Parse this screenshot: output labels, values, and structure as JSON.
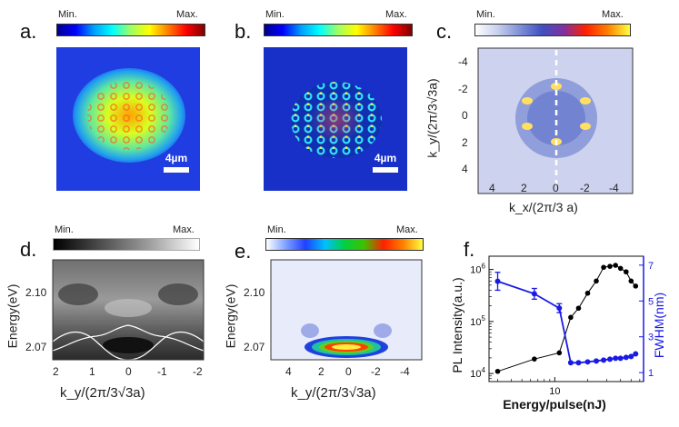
{
  "panels": {
    "a": {
      "letter": "a.",
      "cb_min": "Min.",
      "cb_max": "Max.",
      "scale_bar": "4µm"
    },
    "b": {
      "letter": "b.",
      "cb_min": "Min.",
      "cb_max": "Max.",
      "scale_bar": "4µm"
    },
    "c": {
      "letter": "c.",
      "cb_min": "Min.",
      "cb_max": "Max.",
      "ylabel": "k_y/(2π/3√3a)",
      "xlabel": "k_x/(2π/3 a)",
      "yticks": [
        "-4",
        "-2",
        "0",
        "2",
        "4"
      ],
      "xticks": [
        "4",
        "2",
        "0",
        "-2",
        "-4"
      ]
    },
    "d": {
      "letter": "d.",
      "cb_min": "Min.",
      "cb_max": "Max.",
      "ylabel": "Energy(eV)",
      "xlabel": "k_y/(2π/3√3a)",
      "yticks": [
        "2.10",
        "2.07"
      ],
      "xticks": [
        "2",
        "1",
        "0",
        "-1",
        "-2"
      ]
    },
    "e": {
      "letter": "e.",
      "cb_min": "Min.",
      "cb_max": "Max.",
      "ylabel": "Energy(eV)",
      "xlabel": "k_y/(2π/3√3a)",
      "yticks": [
        "2.10",
        "2.07"
      ],
      "xticks": [
        "4",
        "2",
        "0",
        "-2",
        "-4"
      ]
    },
    "f": {
      "letter": "f."
    }
  },
  "chart_data": {
    "type": "scatter",
    "xlabel": "Energy/pulse(nJ)",
    "ylabel": "PL Intensity(a.u.)",
    "y2label": "FWHM(nm)",
    "xscale": "log",
    "yscale": "log",
    "xticks": [
      "10"
    ],
    "yticks": [
      "10^4",
      "10^5",
      "10^6"
    ],
    "y2ticks": [
      "1",
      "3",
      "5",
      "7"
    ],
    "xlim": [
      2.5,
      65
    ],
    "ylim": [
      7000,
      1800000
    ],
    "y2lim": [
      0.5,
      7.5
    ],
    "series": [
      {
        "axis": "left",
        "color": "#000000",
        "x": [
          3,
          6.5,
          11,
          14,
          16.5,
          20,
          24,
          28,
          32,
          36,
          40,
          45,
          50,
          55
        ],
        "y": [
          11000,
          19000,
          25000,
          120000,
          180000,
          350000,
          600000,
          1100000,
          1150000,
          1200000,
          1050000,
          900000,
          600000,
          480000
        ]
      },
      {
        "axis": "right",
        "color": "#1a1ae6",
        "x": [
          3,
          6.5,
          11,
          14,
          16.5,
          20,
          24,
          28,
          32,
          36,
          40,
          45,
          50,
          55
        ],
        "y": [
          6.1,
          5.4,
          4.6,
          1.55,
          1.55,
          1.6,
          1.65,
          1.7,
          1.75,
          1.8,
          1.8,
          1.85,
          1.9,
          2.05
        ],
        "err": [
          0.5,
          0.3,
          0.25,
          0.08,
          0.05,
          0.05,
          0.05,
          0.05,
          0.05,
          0.05,
          0.05,
          0.05,
          0.05,
          0.08
        ]
      }
    ]
  }
}
